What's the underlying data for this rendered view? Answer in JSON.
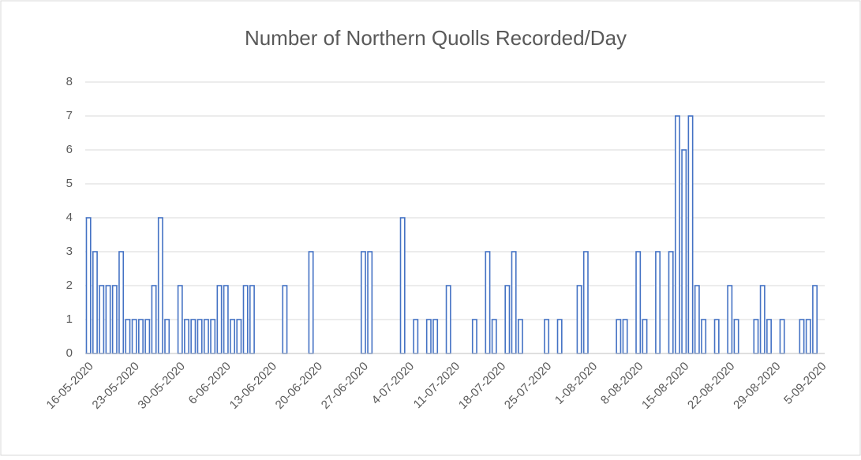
{
  "chart_data": {
    "type": "bar",
    "title": "Number of Northern Quolls Recorded/Day",
    "categories": [
      "16-05-2020",
      null,
      null,
      null,
      null,
      null,
      null,
      "23-05-2020",
      null,
      null,
      null,
      null,
      null,
      null,
      "30-05-2020",
      null,
      null,
      null,
      null,
      null,
      null,
      "6-06-2020",
      null,
      null,
      null,
      null,
      null,
      null,
      "13-06-2020",
      null,
      null,
      null,
      null,
      null,
      null,
      "20-06-2020",
      null,
      null,
      null,
      null,
      null,
      null,
      "27-06-2020",
      null,
      null,
      null,
      null,
      null,
      null,
      "4-07-2020",
      null,
      null,
      null,
      null,
      null,
      null,
      "11-07-2020",
      null,
      null,
      null,
      null,
      null,
      null,
      "18-07-2020",
      null,
      null,
      null,
      null,
      null,
      null,
      "25-07-2020",
      null,
      null,
      null,
      null,
      null,
      null,
      "1-08-2020",
      null,
      null,
      null,
      null,
      null,
      null,
      "8-08-2020",
      null,
      null,
      null,
      null,
      null,
      null,
      "15-08-2020",
      null,
      null,
      null,
      null,
      null,
      null,
      "22-08-2020",
      null,
      null,
      null,
      null,
      null,
      null,
      "29-08-2020",
      null,
      null,
      null,
      null,
      null,
      null,
      "5-09-2020"
    ],
    "values": [
      4,
      3,
      2,
      2,
      2,
      3,
      1,
      1,
      1,
      1,
      2,
      4,
      1,
      0,
      2,
      1,
      1,
      1,
      1,
      1,
      2,
      2,
      1,
      1,
      2,
      2,
      0,
      0,
      0,
      0,
      2,
      0,
      0,
      0,
      3,
      0,
      0,
      0,
      0,
      0,
      0,
      0,
      3,
      3,
      0,
      0,
      0,
      0,
      4,
      0,
      1,
      0,
      1,
      1,
      0,
      2,
      0,
      0,
      0,
      1,
      0,
      3,
      1,
      0,
      2,
      3,
      1,
      0,
      0,
      0,
      1,
      0,
      1,
      0,
      0,
      2,
      3,
      0,
      0,
      0,
      0,
      1,
      1,
      0,
      3,
      1,
      0,
      3,
      0,
      3,
      7,
      6,
      7,
      2,
      1,
      0,
      1,
      0,
      2,
      1,
      0,
      0,
      1,
      2,
      1,
      0,
      1,
      0,
      0,
      1,
      1,
      2,
      0
    ],
    "color": "#4472c4",
    "ylim": [
      0,
      8
    ],
    "yticks": [
      0,
      1,
      2,
      3,
      4,
      5,
      6,
      7,
      8
    ],
    "grid": true
  }
}
